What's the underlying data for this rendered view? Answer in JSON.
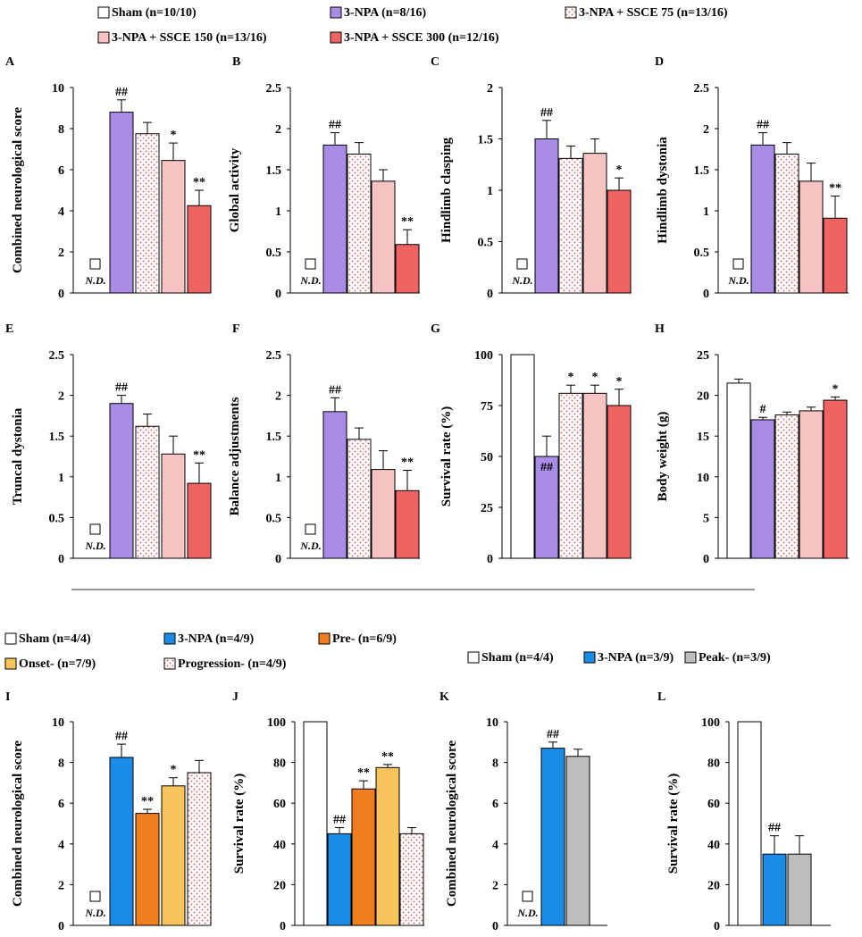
{
  "colors": {
    "sham": "#ffffff",
    "npa_purple": "#a98ce6",
    "ssce75_dots": "#e05050",
    "ssce150": "#f7c3c3",
    "ssce300": "#ef6363",
    "npa_blue": "#1a8ce8",
    "pre": "#f07d1e",
    "onset": "#f8c45c",
    "peak": "#bdbdbd"
  },
  "legend_top": [
    {
      "label": "Sham (n=10/10)",
      "style": "sham"
    },
    {
      "label": "3-NPA (n=8/16)",
      "style": "npa_purple"
    },
    {
      "label": "3-NPA + SSCE 75 (n=13/16)",
      "style": "dots"
    },
    {
      "label": "3-NPA + SSCE 150 (n=13/16)",
      "style": "ssce150"
    },
    {
      "label": "3-NPA + SSCE 300 (n=12/16)",
      "style": "ssce300"
    }
  ],
  "legend_ij": [
    {
      "label": "Sham (n=4/4)",
      "style": "sham"
    },
    {
      "label": "3-NPA (n=4/9)",
      "style": "npa_blue"
    },
    {
      "label": "Pre- (n=6/9)",
      "style": "pre"
    },
    {
      "label": "Onset- (n=7/9)",
      "style": "onset"
    },
    {
      "label": "Progression- (n=4/9)",
      "style": "dots"
    }
  ],
  "legend_kl": [
    {
      "label": "Sham (n=4/4)",
      "style": "sham"
    },
    {
      "label": "3-NPA (n=3/9)",
      "style": "npa_blue"
    },
    {
      "label": "Peak- (n=3/9)",
      "style": "peak"
    }
  ],
  "nd_label": "N.D.",
  "chart_data": [
    {
      "panel": "A",
      "type": "bar",
      "ylabel": "Combined  neurological score",
      "ylim": [
        0,
        10
      ],
      "yticks": [
        "0",
        "2",
        "4",
        "6",
        "8",
        "10"
      ],
      "categories": [
        "Sham",
        "3-NPA",
        "3-NPA + SSCE 75",
        "3-NPA + SSCE 150",
        "3-NPA + SSCE 300"
      ],
      "values": [
        null,
        8.8,
        7.75,
        6.45,
        4.25
      ],
      "errors": [
        null,
        0.6,
        0.55,
        0.85,
        0.75
      ],
      "styles": [
        "sham",
        "npa_purple",
        "dots",
        "ssce150",
        "ssce300"
      ],
      "marks": [
        "",
        "##",
        "",
        "*",
        "**"
      ],
      "nd": true
    },
    {
      "panel": "B",
      "type": "bar",
      "ylabel": "Global  activity",
      "ylim": [
        0,
        2.5
      ],
      "yticks": [
        "0",
        "0.5",
        "1",
        "1.5",
        "2",
        "2.5"
      ],
      "categories": [
        "Sham",
        "3-NPA",
        "3-NPA + SSCE 75",
        "3-NPA + SSCE 150",
        "3-NPA + SSCE 300"
      ],
      "values": [
        null,
        1.8,
        1.69,
        1.36,
        0.59
      ],
      "errors": [
        null,
        0.15,
        0.14,
        0.14,
        0.18
      ],
      "styles": [
        "sham",
        "npa_purple",
        "dots",
        "ssce150",
        "ssce300"
      ],
      "marks": [
        "",
        "##",
        "",
        "",
        "**"
      ],
      "nd": true
    },
    {
      "panel": "C",
      "type": "bar",
      "ylabel": "Hindlimb  clasping",
      "ylim": [
        0,
        2
      ],
      "yticks": [
        "0",
        "0.5",
        "1",
        "1.5",
        "2"
      ],
      "categories": [
        "Sham",
        "3-NPA",
        "3-NPA + SSCE 75",
        "3-NPA + SSCE 150",
        "3-NPA + SSCE 300"
      ],
      "values": [
        null,
        1.5,
        1.31,
        1.36,
        1.0
      ],
      "errors": [
        null,
        0.18,
        0.12,
        0.14,
        0.12
      ],
      "styles": [
        "sham",
        "npa_purple",
        "dots",
        "ssce150",
        "ssce300"
      ],
      "marks": [
        "",
        "##",
        "",
        "",
        "*"
      ],
      "nd": true
    },
    {
      "panel": "D",
      "type": "bar",
      "ylabel": "Hindlimb  dystonia",
      "ylim": [
        0,
        2.5
      ],
      "yticks": [
        "0",
        "0.5",
        "1",
        "1.5",
        "2",
        "2.5"
      ],
      "categories": [
        "Sham",
        "3-NPA",
        "3-NPA + SSCE 75",
        "3-NPA + SSCE 150",
        "3-NPA + SSCE 300"
      ],
      "values": [
        null,
        1.8,
        1.69,
        1.36,
        0.91
      ],
      "errors": [
        null,
        0.15,
        0.14,
        0.22,
        0.27
      ],
      "styles": [
        "sham",
        "npa_purple",
        "dots",
        "ssce150",
        "ssce300"
      ],
      "marks": [
        "",
        "##",
        "",
        "",
        "**"
      ],
      "nd": true
    },
    {
      "panel": "E",
      "type": "bar",
      "ylabel": "Truncal  dystonia",
      "ylim": [
        0,
        2.5
      ],
      "yticks": [
        "0",
        "0.5",
        "1",
        "1.5",
        "2",
        "2.5"
      ],
      "categories": [
        "Sham",
        "3-NPA",
        "3-NPA + SSCE 75",
        "3-NPA + SSCE 150",
        "3-NPA + SSCE 300"
      ],
      "values": [
        null,
        1.9,
        1.62,
        1.28,
        0.92
      ],
      "errors": [
        null,
        0.1,
        0.15,
        0.22,
        0.25
      ],
      "styles": [
        "sham",
        "npa_purple",
        "dots",
        "ssce150",
        "ssce300"
      ],
      "marks": [
        "",
        "##",
        "",
        "",
        "**"
      ],
      "nd": true
    },
    {
      "panel": "F",
      "type": "bar",
      "ylabel": "Balance  adjustments",
      "ylim": [
        0,
        2.5
      ],
      "yticks": [
        "0",
        "0.5",
        "1",
        "1.5",
        "2",
        "2.5"
      ],
      "categories": [
        "Sham",
        "3-NPA",
        "3-NPA + SSCE 75",
        "3-NPA + SSCE 150",
        "3-NPA + SSCE 300"
      ],
      "values": [
        null,
        1.8,
        1.46,
        1.09,
        0.83
      ],
      "errors": [
        null,
        0.17,
        0.14,
        0.23,
        0.25
      ],
      "styles": [
        "sham",
        "npa_purple",
        "dots",
        "ssce150",
        "ssce300"
      ],
      "marks": [
        "",
        "##",
        "",
        "",
        "**"
      ],
      "nd": true
    },
    {
      "panel": "G",
      "type": "bar",
      "ylabel": "Survival  rate  (%)",
      "ylim": [
        0,
        100
      ],
      "yticks": [
        "0",
        "25",
        "50",
        "75",
        "100"
      ],
      "categories": [
        "Sham",
        "3-NPA",
        "3-NPA + SSCE 75",
        "3-NPA + SSCE 150",
        "3-NPA + SSCE 300"
      ],
      "values": [
        100,
        50,
        81,
        81,
        75
      ],
      "errors": [
        0,
        10,
        4,
        4,
        8
      ],
      "styles": [
        "sham",
        "npa_purple",
        "dots",
        "ssce150",
        "ssce300"
      ],
      "marks": [
        "",
        "##",
        "*",
        "*",
        "*"
      ],
      "marks_inside": [
        false,
        true,
        false,
        false,
        false
      ],
      "nd": false
    },
    {
      "panel": "H",
      "type": "bar",
      "ylabel": "Body  weight  (g)",
      "ylim": [
        0,
        25
      ],
      "yticks": [
        "0",
        "5",
        "10",
        "15",
        "20",
        "25"
      ],
      "categories": [
        "Sham",
        "3-NPA",
        "3-NPA + SSCE 75",
        "3-NPA + SSCE 150",
        "3-NPA + SSCE 300"
      ],
      "values": [
        21.5,
        17.0,
        17.6,
        18.1,
        19.4
      ],
      "errors": [
        0.5,
        0.3,
        0.35,
        0.45,
        0.4
      ],
      "styles": [
        "sham",
        "npa_purple",
        "dots",
        "ssce150",
        "ssce300"
      ],
      "marks": [
        "",
        "#",
        "",
        "",
        "*"
      ],
      "nd": false
    },
    {
      "panel": "I",
      "type": "bar",
      "ylabel": "Combined  neurological score",
      "ylim": [
        0,
        10
      ],
      "yticks": [
        "0",
        "2",
        "4",
        "6",
        "8",
        "10"
      ],
      "categories": [
        "Sham",
        "3-NPA",
        "Pre-",
        "Onset-",
        "Progression-"
      ],
      "values": [
        null,
        8.25,
        5.5,
        6.85,
        7.5
      ],
      "errors": [
        null,
        0.65,
        0.2,
        0.4,
        0.6
      ],
      "styles": [
        "sham",
        "npa_blue",
        "pre",
        "onset",
        "dots"
      ],
      "marks": [
        "",
        "##",
        "**",
        "*",
        ""
      ],
      "nd": true
    },
    {
      "panel": "J",
      "type": "bar",
      "ylabel": "Survival  rate  (%)",
      "ylim": [
        0,
        100
      ],
      "yticks": [
        "0",
        "20",
        "40",
        "60",
        "80",
        "100"
      ],
      "categories": [
        "Sham",
        "3-NPA",
        "Pre-",
        "Onset-",
        "Progression-"
      ],
      "values": [
        100,
        45,
        67,
        77.5,
        45
      ],
      "errors": [
        0,
        3,
        4,
        1.5,
        3
      ],
      "styles": [
        "sham",
        "npa_blue",
        "pre",
        "onset",
        "dots"
      ],
      "marks": [
        "",
        "##",
        "**",
        "**",
        ""
      ],
      "nd": false
    },
    {
      "panel": "K",
      "type": "bar",
      "ylabel": "Combined  neurological score",
      "ylim": [
        0,
        10
      ],
      "yticks": [
        "0",
        "2",
        "4",
        "6",
        "8",
        "10"
      ],
      "categories": [
        "Sham",
        "3-NPA",
        "Peak-"
      ],
      "values": [
        null,
        8.7,
        8.3
      ],
      "errors": [
        null,
        0.3,
        0.35
      ],
      "styles": [
        "sham",
        "npa_blue",
        "peak"
      ],
      "marks": [
        "",
        "##",
        ""
      ],
      "nd": true
    },
    {
      "panel": "L",
      "type": "bar",
      "ylabel": "Survival  rate  (%)",
      "ylim": [
        0,
        100
      ],
      "yticks": [
        "0",
        "20",
        "40",
        "60",
        "80",
        "100"
      ],
      "categories": [
        "Sham",
        "3-NPA",
        "Peak-"
      ],
      "values": [
        100,
        35,
        35
      ],
      "errors": [
        0,
        9,
        9
      ],
      "styles": [
        "sham",
        "npa_blue",
        "peak"
      ],
      "marks": [
        "",
        "##",
        ""
      ],
      "nd": false
    }
  ]
}
